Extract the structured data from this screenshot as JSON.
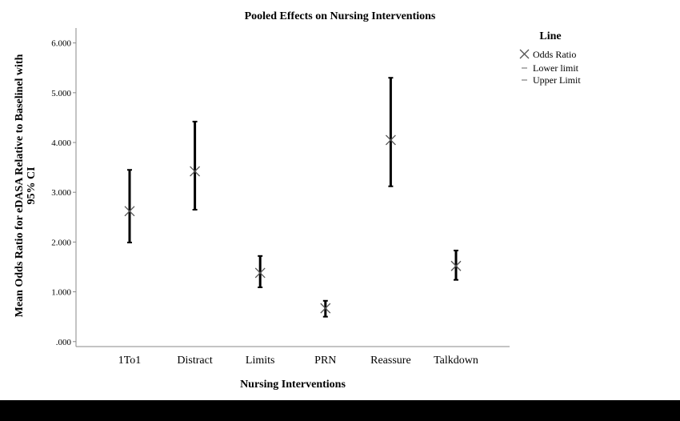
{
  "chart_data": {
    "type": "error-bar",
    "title": "Pooled Effects on Nursing Interventions",
    "xlabel": "Nursing Interventions",
    "ylabel_lines": [
      "Mean Odds Ratio for eDASA Relative to Baselinel with",
      "95% CI"
    ],
    "ylim": [
      -0.1,
      6.3
    ],
    "yticks": [
      0,
      1,
      2,
      3,
      4,
      5,
      6
    ],
    "ytick_labels": [
      ".000",
      "1.000",
      "2.000",
      "3.000",
      "4.000",
      "5.000",
      "6.000"
    ],
    "categories": [
      "1To1",
      "Distract",
      "Limits",
      "PRN",
      "Reassure",
      "Talkdown"
    ],
    "series": [
      {
        "name": "Odds Ratio",
        "values": [
          2.62,
          3.42,
          1.38,
          0.67,
          4.05,
          1.52
        ]
      },
      {
        "name": "Lower limit",
        "values": [
          1.99,
          2.65,
          1.09,
          0.5,
          3.12,
          1.24
        ]
      },
      {
        "name": "Upper Limit",
        "values": [
          3.45,
          4.42,
          1.72,
          0.82,
          5.3,
          1.83
        ]
      }
    ],
    "legend": {
      "title": "Line",
      "position": "right",
      "entries": [
        "Odds Ratio",
        "Lower limit",
        "Upper Limit"
      ]
    }
  },
  "colors": {
    "bars": "#000000",
    "marker": "#555555",
    "axis": "#888888",
    "bottom_bar": "#000000"
  }
}
